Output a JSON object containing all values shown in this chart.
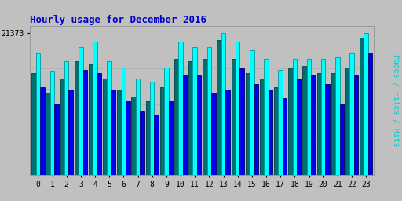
{
  "title": "Hourly usage for December 2016",
  "ylabel_text": "Pages / Files / Hits",
  "xlabel_values": [
    0,
    1,
    2,
    3,
    4,
    5,
    6,
    7,
    8,
    9,
    10,
    11,
    12,
    13,
    14,
    15,
    16,
    17,
    18,
    19,
    20,
    21,
    22,
    23
  ],
  "pages": [
    0.72,
    0.58,
    0.68,
    0.8,
    0.78,
    0.68,
    0.6,
    0.55,
    0.52,
    0.62,
    0.82,
    0.8,
    0.82,
    0.95,
    0.82,
    0.72,
    0.68,
    0.62,
    0.75,
    0.77,
    0.72,
    0.72,
    0.76,
    0.97
  ],
  "files": [
    0.62,
    0.5,
    0.6,
    0.74,
    0.72,
    0.6,
    0.52,
    0.45,
    0.42,
    0.52,
    0.7,
    0.7,
    0.58,
    0.6,
    0.75,
    0.64,
    0.6,
    0.54,
    0.68,
    0.7,
    0.64,
    0.5,
    0.7,
    0.86
  ],
  "hits": [
    0.86,
    0.73,
    0.8,
    0.9,
    0.94,
    0.8,
    0.76,
    0.68,
    0.66,
    0.76,
    0.94,
    0.9,
    0.9,
    1.0,
    0.94,
    0.88,
    0.82,
    0.74,
    0.82,
    0.82,
    0.82,
    0.83,
    0.86,
    1.0
  ],
  "pages_color": "#007070",
  "pages_edge": "#004444",
  "files_color": "#0000ee",
  "files_edge": "#000066",
  "hits_color": "#00ffff",
  "hits_edge": "#009999",
  "bg_color": "#c0c0c0",
  "plot_bg_color": "#c0c0c0",
  "title_color": "#0000cc",
  "ylabel_color": "#00cccc",
  "bar_width": 0.3,
  "ylim_max": 1.05,
  "ytick_label": "21373",
  "grid_color": "#b0b0b0"
}
